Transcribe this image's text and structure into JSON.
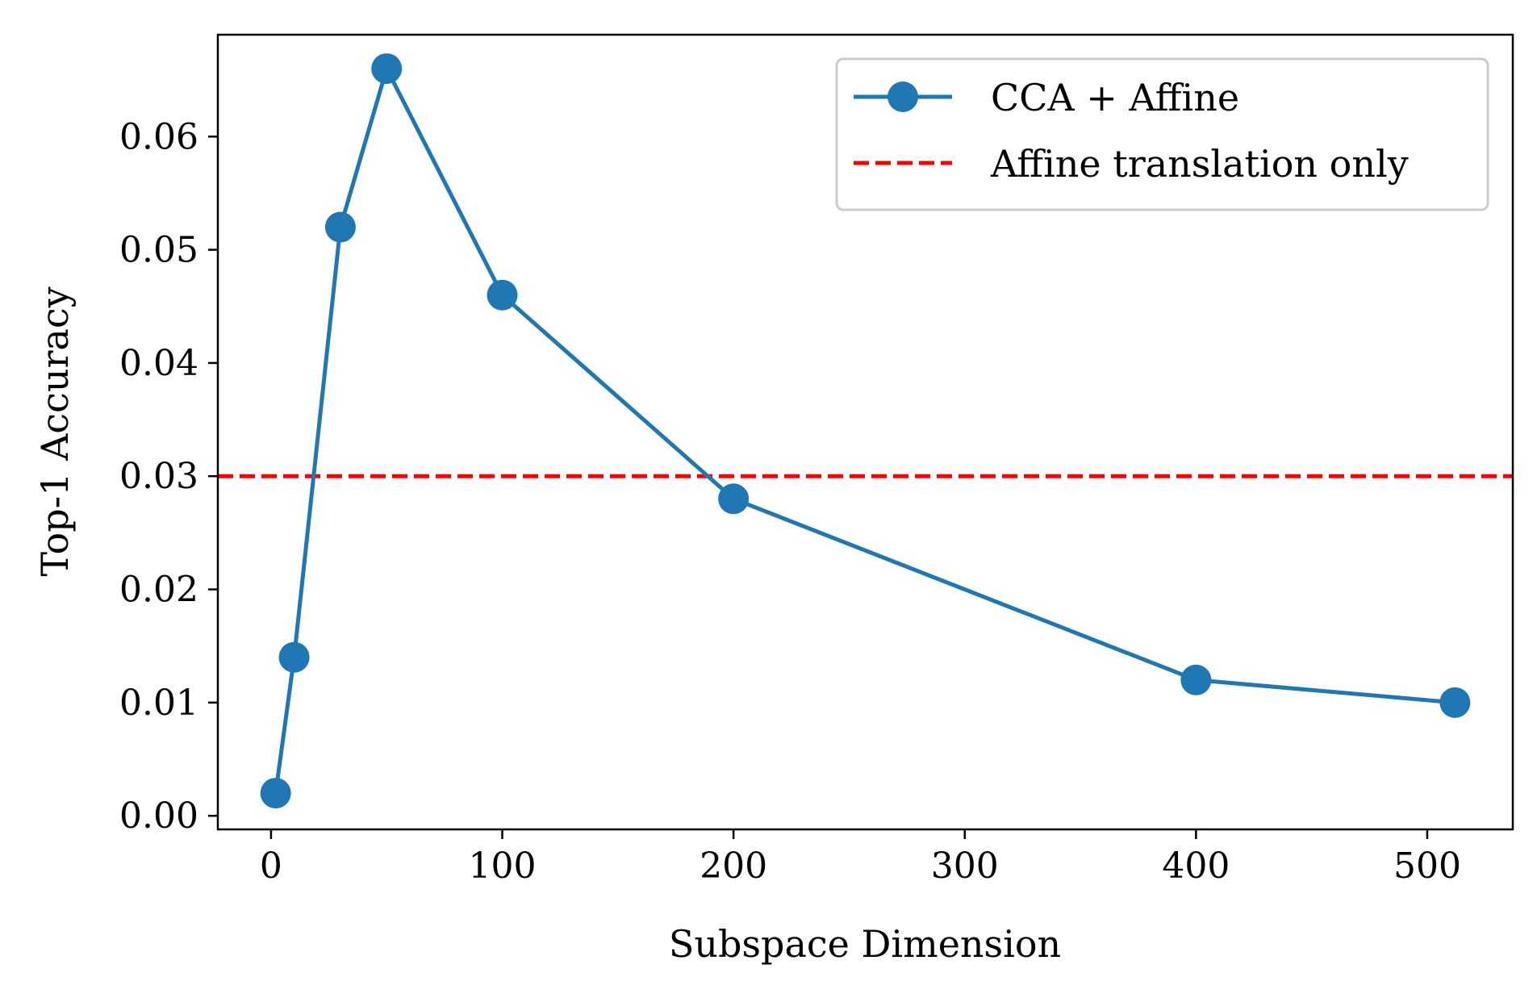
{
  "chart_data": {
    "type": "line",
    "title": "",
    "xlabel": "Subspace Dimension",
    "ylabel": "Top-1 Accuracy",
    "xlim": [
      -23,
      537
    ],
    "ylim": [
      -0.0012,
      0.069
    ],
    "xticks": [
      0,
      100,
      200,
      300,
      400,
      500
    ],
    "xtick_labels": [
      "0",
      "100",
      "200",
      "300",
      "400",
      "500"
    ],
    "yticks": [
      0.0,
      0.01,
      0.02,
      0.03,
      0.04,
      0.05,
      0.06
    ],
    "ytick_labels": [
      "0.00",
      "0.01",
      "0.02",
      "0.03",
      "0.04",
      "0.05",
      "0.06"
    ],
    "grid": false,
    "legend_position": "top-right",
    "series": [
      {
        "name": "CCA + Affine",
        "style": "solid-line-with-circle-markers",
        "color": "#1f77b4",
        "x": [
          2,
          10,
          30,
          50,
          100,
          200,
          400,
          512
        ],
        "values": [
          0.002,
          0.014,
          0.052,
          0.066,
          0.046,
          0.028,
          0.012,
          0.01
        ]
      }
    ],
    "reference_lines": [
      {
        "name": "Affine translation only",
        "orientation": "horizontal",
        "value": 0.03,
        "style": "dashed",
        "color": "#ff0000"
      }
    ]
  }
}
